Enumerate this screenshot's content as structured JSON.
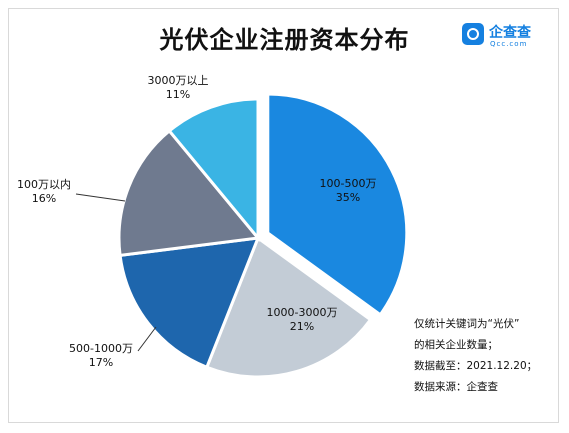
{
  "title": "光伏企业注册资本分布",
  "logo": {
    "name": "企查查",
    "sub": "Qcc.com",
    "icon": "magnifier-logo-icon"
  },
  "chart_data": {
    "type": "pie",
    "title": "光伏企业注册资本分布",
    "slices": [
      {
        "label": "100-500万",
        "value": 35,
        "display": "35%",
        "color": "#1a88e0",
        "exploded": true
      },
      {
        "label": "1000-3000万",
        "value": 21,
        "display": "21%",
        "color": "#c3ccd6",
        "exploded": false
      },
      {
        "label": "500-1000万",
        "value": 17,
        "display": "17%",
        "color": "#1e66ad",
        "exploded": false
      },
      {
        "label": "100万以内",
        "value": 16,
        "display": "16%",
        "color": "#6f7a8f",
        "exploded": false
      },
      {
        "label": "3000万以上",
        "value": 11,
        "display": "11%",
        "color": "#3ab4e4",
        "exploded": false
      }
    ]
  },
  "notes": [
    "仅统计关键词为“光伏”",
    "的相关企业数量；",
    "数据截至：2021.12.20；",
    "数据来源：企查查"
  ]
}
